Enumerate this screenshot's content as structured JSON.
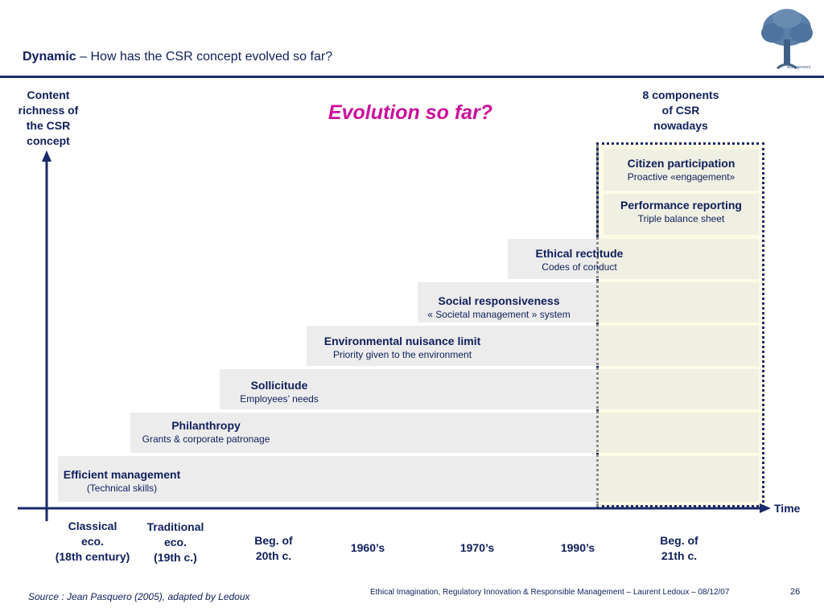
{
  "header": {
    "title_bold": "Dynamic",
    "title_rest": " – How has the CSR concept evolved so far?"
  },
  "logo": {
    "text_line1": "Philo",
    "text_line2": "Management",
    "icon": "tree-icon"
  },
  "y_axis_label": [
    "Content",
    "richness of",
    "the CSR",
    "concept"
  ],
  "headline": "Evolution so far?",
  "components_label": [
    "8 components",
    "of CSR",
    "nowadays"
  ],
  "stages": [
    {
      "title": "Citizen participation",
      "subtitle": "Proactive «engagement»"
    },
    {
      "title": "Performance reporting",
      "subtitle": "Triple balance sheet"
    },
    {
      "title": "Ethical rectitude",
      "subtitle": "Codes of conduct"
    },
    {
      "title": "Social responsiveness",
      "subtitle": "« Societal management » system"
    },
    {
      "title": "Environmental nuisance limit",
      "subtitle": "Priority given to the environment"
    },
    {
      "title": "Sollicitude",
      "subtitle": "Employees’ needs"
    },
    {
      "title": "Philanthropy",
      "subtitle": "Grants & corporate patronage"
    },
    {
      "title": "Efficient management",
      "subtitle": "(Technical skills)"
    }
  ],
  "x_axis_label": "Time",
  "time_labels": [
    [
      "Classical",
      "eco.",
      "(18th century)"
    ],
    [
      "Traditional",
      "eco.",
      "(19th c.)"
    ],
    [
      "Beg. of",
      "20th c."
    ],
    [
      "1960’s"
    ],
    [
      "1970’s"
    ],
    [
      "1990’s"
    ],
    [
      "Beg. of",
      "21th c."
    ]
  ],
  "footer": {
    "source": "Source : Jean Pasquero (2005), adapted by Ledoux",
    "credit": "Ethical Imagination, Regulatory Innovation & Responsible Management – Laurent Ledoux  –  08/12/07",
    "page_number": "26"
  },
  "colors": {
    "navy": "#0f1f5c",
    "headline": "#cc0e9a",
    "highlight_box": "#fcfce6",
    "bar": "#ececec"
  }
}
